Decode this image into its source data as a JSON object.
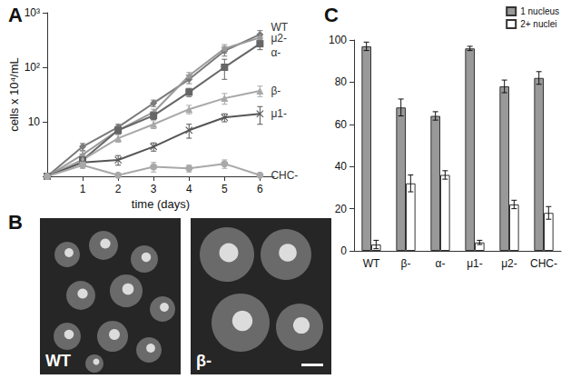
{
  "chart_data": [
    {
      "type": "line",
      "title": "A",
      "x": [
        0,
        1,
        2,
        3,
        4,
        5,
        6
      ],
      "xlabel": "time (days)",
      "ylabel": "cells x 10⁴/mL",
      "log": "y",
      "xlim": [
        0,
        6.4
      ],
      "xticks": [
        1,
        2,
        3,
        4,
        5,
        6
      ],
      "ylim": [
        1,
        1000
      ],
      "yticks": [
        10,
        {
          "value": 100,
          "label": "10²"
        },
        {
          "value": 1000,
          "label": "10³"
        }
      ],
      "grid": false,
      "series": [
        {
          "name": "WT",
          "color": "#7a7a7a",
          "marker": "diamond",
          "values": [
            1,
            3.5,
            8,
            22,
            60,
            200,
            400
          ],
          "errors": [
            0,
            0.5,
            1,
            3,
            10,
            40,
            70
          ]
        },
        {
          "name": "μ2-",
          "color": "#9a9a9a",
          "marker": "star",
          "values": [
            1,
            2.5,
            7,
            15,
            70,
            220,
            350
          ],
          "errors": [
            0,
            0.4,
            1,
            2,
            10,
            40,
            50
          ]
        },
        {
          "name": "α-",
          "color": "#666666",
          "marker": "square",
          "values": [
            1,
            2,
            7,
            13,
            35,
            100,
            270
          ],
          "errors": [
            0,
            0.3,
            1,
            2,
            6,
            40,
            60
          ]
        },
        {
          "name": "β-",
          "color": "#a8a8a8",
          "marker": "triangle",
          "values": [
            1,
            2,
            5,
            9,
            17,
            27,
            37
          ],
          "errors": [
            0,
            0.3,
            0.8,
            1.5,
            3,
            6,
            8
          ]
        },
        {
          "name": "μ1-",
          "color": "#555555",
          "marker": "x",
          "values": [
            1,
            1.8,
            2,
            3.5,
            7,
            12,
            14
          ],
          "errors": [
            0,
            0.3,
            0.4,
            0.6,
            2,
            2,
            5
          ]
        },
        {
          "name": "CHC-",
          "color": "#a8a8a8",
          "marker": "circle",
          "values": [
            1,
            1.6,
            1.05,
            1.5,
            1.4,
            1.7,
            1.05
          ],
          "errors": [
            0,
            0.2,
            0,
            0.3,
            0.2,
            0.3,
            0
          ]
        }
      ]
    },
    {
      "type": "image",
      "title": "B",
      "labels": [
        "WT",
        "β-"
      ]
    },
    {
      "type": "bar",
      "title": "C",
      "categories": [
        "WT",
        "β-",
        "α-",
        "μ1-",
        "μ2-",
        "CHC-"
      ],
      "ylim": [
        0,
        100
      ],
      "yticks": [
        0,
        20,
        40,
        60,
        80,
        100
      ],
      "grid": false,
      "legend": "top-right",
      "series": [
        {
          "name": "1 nucleus",
          "color": "#999999",
          "values": [
            97,
            68,
            64,
            96,
            78,
            82
          ],
          "errors": [
            2,
            4,
            2,
            1,
            3,
            3
          ]
        },
        {
          "name": "2+ nuclei",
          "color": "#ffffff",
          "values": [
            3,
            32,
            36,
            4,
            22,
            18
          ],
          "errors": [
            2,
            4,
            2,
            1,
            2,
            3
          ]
        }
      ]
    }
  ]
}
